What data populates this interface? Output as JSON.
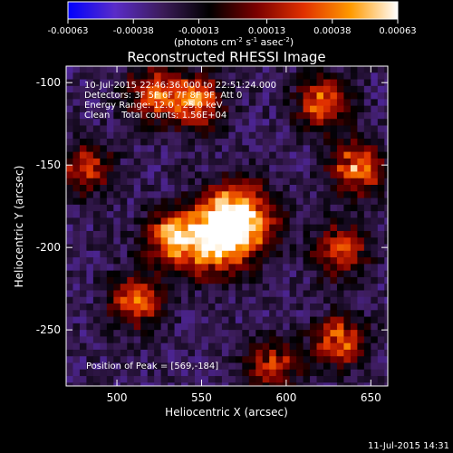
{
  "chart_data": {
    "type": "heatmap",
    "title": "Reconstructed RHESSI Image",
    "xlabel": "Heliocentric X (arcsec)",
    "ylabel": "Heliocentric Y (arcsec)",
    "xlim": [
      470,
      660
    ],
    "ylim": [
      -284,
      -90
    ],
    "x_ticks": [
      "500",
      "550",
      "600",
      "650"
    ],
    "x_tick_values": [
      500,
      550,
      600,
      650
    ],
    "y_ticks": [
      "-100",
      "-150",
      "-200",
      "-250"
    ],
    "y_tick_values": [
      -100,
      -150,
      -200,
      -250
    ],
    "colorbar": {
      "range": [
        -0.00063,
        0.00063
      ],
      "tick_labels": [
        "-0.00063",
        "-0.00038",
        "-0.00013",
        "0.00013",
        "0.00038",
        "0.00063"
      ],
      "unit_prefix": "(photons cm",
      "unit_exp1": "-2",
      "unit_mid": " s",
      "unit_exp2": "-1",
      "unit_mid2": " asec",
      "unit_exp3": "-2",
      "unit_suffix": ")",
      "colors": [
        "#0000ff",
        "#5a2cc8",
        "#3c1c5a",
        "#000000",
        "#7a0000",
        "#e03000",
        "#ff9a00",
        "#ffffff"
      ]
    },
    "annotations": [
      "10-Jul-2015 22:46:36.000 to 22:51:24.000",
      "Detectors: 3F 5F 6F 7F 8F 9F, Att 0",
      "Energy Range: 12.0 - 25.0 keV",
      "Clean    Total counts: 1.56E+04"
    ],
    "peak_label": "Position of Peak = [569,-184]",
    "peak": [
      569,
      -184
    ],
    "bright_regions": [
      {
        "x": 570,
        "y": -180,
        "value": 0.00063
      },
      {
        "x": 555,
        "y": -195,
        "value": 0.0005
      },
      {
        "x": 530,
        "y": -192,
        "value": 0.00035
      },
      {
        "x": 520,
        "y": -105,
        "value": 0.0003
      },
      {
        "x": 545,
        "y": -110,
        "value": 0.00035
      },
      {
        "x": 510,
        "y": -230,
        "value": 0.0003
      },
      {
        "x": 620,
        "y": -110,
        "value": 0.0003
      },
      {
        "x": 640,
        "y": -150,
        "value": 0.00035
      },
      {
        "x": 630,
        "y": -200,
        "value": 0.00025
      },
      {
        "x": 630,
        "y": -255,
        "value": 0.0003
      },
      {
        "x": 590,
        "y": -270,
        "value": 0.0002
      },
      {
        "x": 480,
        "y": -150,
        "value": 0.0002
      }
    ]
  },
  "footer": {
    "timestamp": "11-Jul-2015 14:31"
  }
}
